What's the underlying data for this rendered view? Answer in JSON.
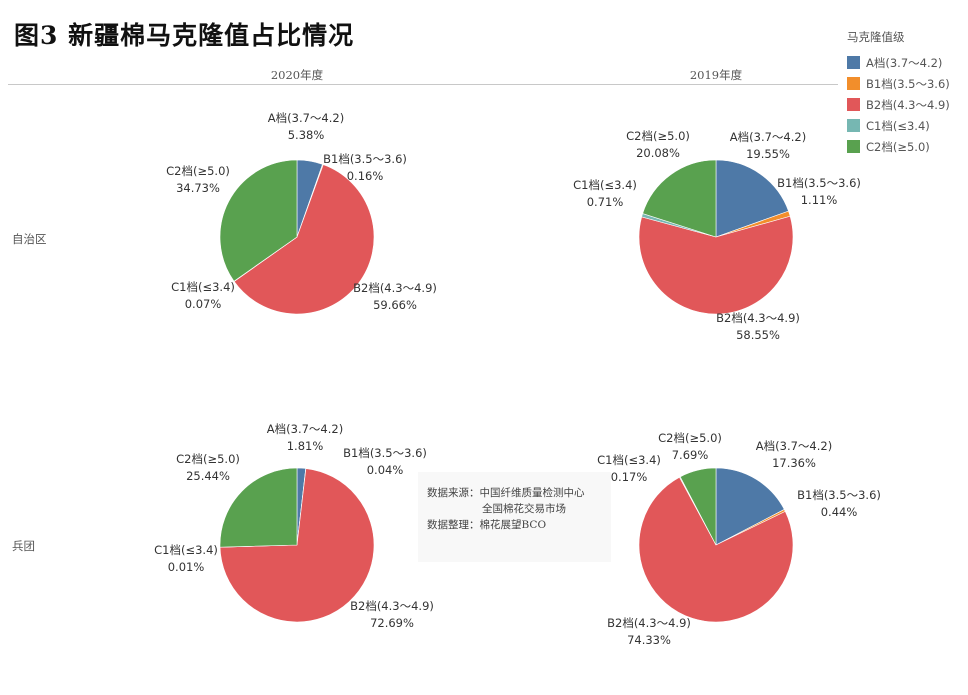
{
  "title": "图3 新疆棉马克隆值占比情况",
  "columns": [
    "2020年度",
    "2019年度"
  ],
  "rows": [
    "自治区",
    "兵团"
  ],
  "legend": {
    "title": "马克隆值级",
    "items": [
      {
        "label": "A档(3.7～4.2)",
        "color": "#4e79a7"
      },
      {
        "label": "B1档(3.5～3.6)",
        "color": "#f28e2b"
      },
      {
        "label": "B2档(4.3～4.9)",
        "color": "#e15759"
      },
      {
        "label": "C1档(≤3.4)",
        "color": "#76b7b2"
      },
      {
        "label": "C2档(≥5.0)",
        "color": "#59a14f"
      }
    ]
  },
  "note": {
    "line1": "数据来源：中国纤维质量检测中心",
    "line2": "全国棉花交易市场",
    "line3": "数据整理：棉花展望BCO"
  },
  "chart_data": [
    {
      "type": "pie",
      "row": "自治区",
      "column": "2020年度",
      "categories": [
        "A档(3.7～4.2)",
        "B1档(3.5～3.6)",
        "B2档(4.3～4.9)",
        "C1档(≤3.4)",
        "C2档(≥5.0)"
      ],
      "values": [
        5.38,
        0.16,
        59.66,
        0.07,
        34.73
      ],
      "labels": [
        "5.38%",
        "0.16%",
        "59.66%",
        "0.07%",
        "34.73%"
      ]
    },
    {
      "type": "pie",
      "row": "自治区",
      "column": "2019年度",
      "categories": [
        "A档(3.7～4.2)",
        "B1档(3.5～3.6)",
        "B2档(4.3～4.9)",
        "C1档(≤3.4)",
        "C2档(≥5.0)"
      ],
      "values": [
        19.55,
        1.11,
        58.55,
        0.71,
        20.08
      ],
      "labels": [
        "19.55%",
        "1.11%",
        "58.55%",
        "0.71%",
        "20.08%"
      ]
    },
    {
      "type": "pie",
      "row": "兵团",
      "column": "2020年度",
      "categories": [
        "A档(3.7～4.2)",
        "B1档(3.5～3.6)",
        "B2档(4.3～4.9)",
        "C1档(≤3.4)",
        "C2档(≥5.0)"
      ],
      "values": [
        1.81,
        0.04,
        72.69,
        0.01,
        25.44
      ],
      "labels": [
        "1.81%",
        "0.04%",
        "72.69%",
        "0.01%",
        "25.44%"
      ]
    },
    {
      "type": "pie",
      "row": "兵团",
      "column": "2019年度",
      "categories": [
        "A档(3.7～4.2)",
        "B1档(3.5～3.6)",
        "B2档(4.3～4.9)",
        "C1档(≤3.4)",
        "C2档(≥5.0)"
      ],
      "values": [
        17.36,
        0.44,
        74.33,
        0.17,
        7.69
      ],
      "labels": [
        "17.36%",
        "0.44%",
        "74.33%",
        "0.17%",
        "7.69%"
      ]
    }
  ]
}
